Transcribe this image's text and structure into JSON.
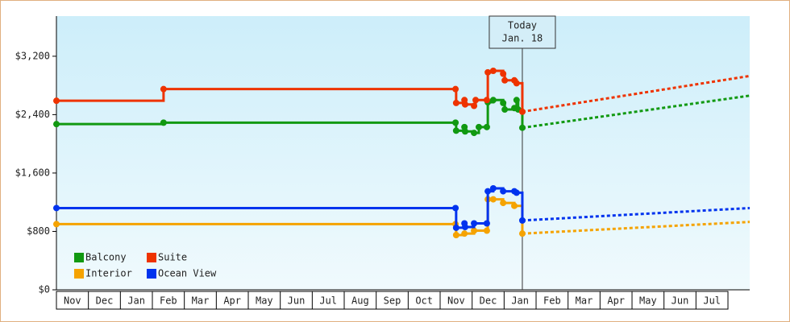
{
  "chart_data": {
    "type": "line",
    "months": [
      "Nov",
      "Dec",
      "Jan",
      "Feb",
      "Mar",
      "Apr",
      "May",
      "Jun",
      "Jul",
      "Aug",
      "Sep",
      "Oct",
      "Nov",
      "Dec",
      "Jan",
      "Feb",
      "Mar",
      "Apr",
      "May",
      "Jun",
      "Jul"
    ],
    "xlim": [
      0,
      21.68
    ],
    "ylim": [
      0,
      3750
    ],
    "yticks": [
      {
        "value": 0,
        "label": "$0"
      },
      {
        "value": 800,
        "label": "$800"
      },
      {
        "value": 1600,
        "label": "$1,600"
      },
      {
        "value": 2400,
        "label": "$2,400"
      },
      {
        "value": 3200,
        "label": "$3,200"
      }
    ],
    "today": {
      "x": 14.57,
      "label": [
        "Today",
        "Jan. 18"
      ]
    },
    "legend": "lower left",
    "series": [
      {
        "name": "Balcony",
        "color": "#119911",
        "x": [
          0,
          3.35,
          12.48,
          12.5,
          12.76,
          12.78,
          13.06,
          13.21,
          13.46,
          13.49,
          13.66,
          13.97,
          14.02,
          14.32,
          14.39,
          14.44,
          14.57
        ],
        "values": [
          2270,
          2290,
          2290,
          2180,
          2230,
          2170,
          2150,
          2230,
          2230,
          2570,
          2600,
          2560,
          2470,
          2490,
          2600,
          2470,
          2220
        ],
        "forecast": {
          "x": [
            14.57,
            21.68
          ],
          "values": [
            2220,
            2660
          ]
        }
      },
      {
        "name": "Suite",
        "color": "#ee3300",
        "x": [
          0,
          3.35,
          12.48,
          12.5,
          12.76,
          12.78,
          13.06,
          13.11,
          13.46,
          13.49,
          13.66,
          13.97,
          14.02,
          14.32,
          14.39,
          14.57
        ],
        "values": [
          2590,
          2750,
          2750,
          2560,
          2600,
          2540,
          2520,
          2600,
          2600,
          2980,
          3000,
          2960,
          2870,
          2870,
          2830,
          2440
        ],
        "forecast": {
          "x": [
            14.57,
            21.68
          ],
          "values": [
            2440,
            2930
          ]
        }
      },
      {
        "name": "Interior",
        "color": "#f5a300",
        "x": [
          0,
          12.48,
          12.5,
          12.76,
          13.06,
          13.46,
          13.49,
          13.66,
          13.97,
          14.32,
          14.57
        ],
        "values": [
          900,
          900,
          750,
          770,
          810,
          810,
          1240,
          1240,
          1190,
          1150,
          770
        ],
        "forecast": {
          "x": [
            14.57,
            21.68
          ],
          "values": [
            770,
            930
          ]
        }
      },
      {
        "name": "Ocean View",
        "color": "#0033ee",
        "x": [
          0,
          12.48,
          12.5,
          12.76,
          12.78,
          13.06,
          13.46,
          13.49,
          13.66,
          13.97,
          14.32,
          14.39,
          14.57
        ],
        "values": [
          1120,
          1120,
          850,
          910,
          860,
          910,
          910,
          1350,
          1390,
          1350,
          1350,
          1330,
          950
        ],
        "forecast": {
          "x": [
            14.57,
            21.68
          ],
          "values": [
            950,
            1120
          ]
        }
      }
    ]
  }
}
